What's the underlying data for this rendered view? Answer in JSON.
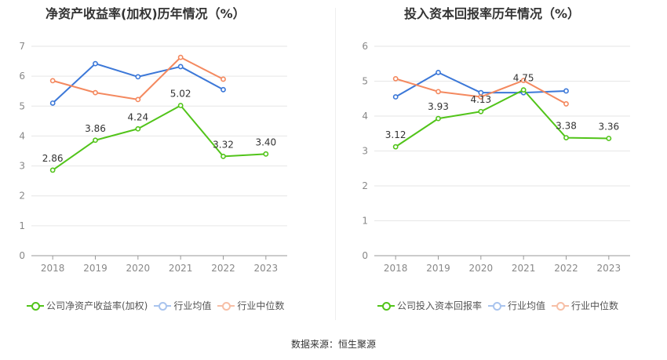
{
  "chart_data": [
    {
      "type": "line",
      "title": "净资产收益率(加权)历年情况（%）",
      "categories": [
        "2018",
        "2019",
        "2020",
        "2021",
        "2022",
        "2023"
      ],
      "ylim": [
        0,
        7
      ],
      "yticks": [
        "0",
        "1",
        "2",
        "3",
        "4",
        "5",
        "6",
        "7"
      ],
      "grid": true,
      "legend_position": "bottom",
      "series": [
        {
          "name": "公司净资产收益率(加权)",
          "color": "#52c41a",
          "values": [
            2.86,
            3.86,
            4.24,
            5.02,
            3.32,
            3.4
          ],
          "labels": [
            "2.86",
            "3.86",
            "4.24",
            "5.02",
            "3.32",
            "3.40"
          ]
        },
        {
          "name": "行业均值",
          "color": "#3c78d8",
          "values": [
            5.1,
            6.42,
            5.98,
            6.32,
            5.55,
            null
          ]
        },
        {
          "name": "行业中位数",
          "color": "#f4895f",
          "values": [
            5.85,
            5.45,
            5.22,
            6.63,
            5.9,
            null
          ]
        }
      ]
    },
    {
      "type": "line",
      "title": "投入资本回报率历年情况（%）",
      "categories": [
        "2018",
        "2019",
        "2020",
        "2021",
        "2022",
        "2023"
      ],
      "ylim": [
        0,
        6
      ],
      "yticks": [
        "0",
        "1",
        "2",
        "3",
        "4",
        "5",
        "6"
      ],
      "grid": true,
      "legend_position": "bottom",
      "series": [
        {
          "name": "公司投入资本回报率",
          "color": "#52c41a",
          "values": [
            3.12,
            3.93,
            4.13,
            4.75,
            3.38,
            3.36
          ],
          "labels": [
            "3.12",
            "3.93",
            "4.13",
            "4.75",
            "3.38",
            "3.36"
          ]
        },
        {
          "name": "行业均值",
          "color": "#3c78d8",
          "values": [
            4.55,
            5.25,
            4.67,
            4.67,
            4.72,
            null
          ]
        },
        {
          "name": "行业中位数",
          "color": "#f4895f",
          "values": [
            5.07,
            4.7,
            4.55,
            5.02,
            4.35,
            null
          ]
        }
      ]
    }
  ],
  "source": "数据来源：恒生聚源"
}
